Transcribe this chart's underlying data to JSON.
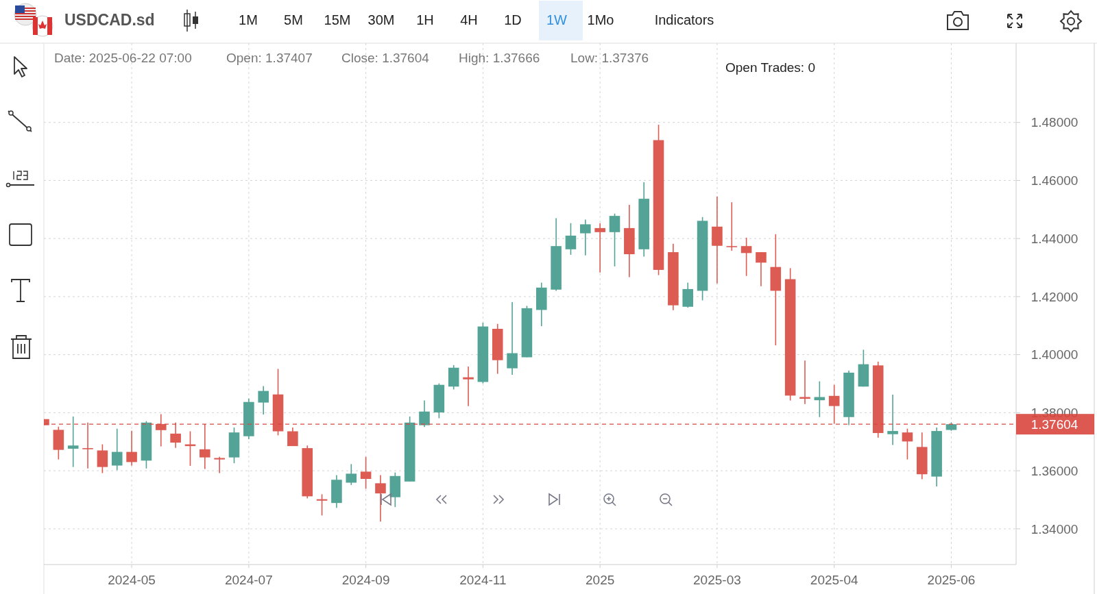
{
  "chart_data": {
    "type": "candlestick",
    "title": "USDCAD.sd",
    "x": [
      "2024-04-14",
      "2024-04-21",
      "2024-04-28",
      "2024-05-05",
      "2024-05-12",
      "2024-05-19",
      "2024-05-26",
      "2024-06-02",
      "2024-06-09",
      "2024-06-16",
      "2024-06-23",
      "2024-06-30",
      "2024-07-07",
      "2024-07-14",
      "2024-07-21",
      "2024-07-28",
      "2024-08-04",
      "2024-08-11",
      "2024-08-18",
      "2024-08-25",
      "2024-09-01",
      "2024-09-08",
      "2024-09-15",
      "2024-09-22",
      "2024-09-29",
      "2024-10-06",
      "2024-10-13",
      "2024-10-20",
      "2024-10-27",
      "2024-11-03",
      "2024-11-10",
      "2024-11-17",
      "2024-11-24",
      "2024-12-01",
      "2024-12-08",
      "2024-12-15",
      "2024-12-22",
      "2024-12-29",
      "2025-01-05",
      "2025-01-12",
      "2025-01-19",
      "2025-01-26",
      "2025-02-02",
      "2025-02-09",
      "2025-02-16",
      "2025-02-23",
      "2025-03-02",
      "2025-03-09",
      "2025-03-16",
      "2025-03-23",
      "2025-03-30",
      "2025-04-06",
      "2025-04-13",
      "2025-04-20",
      "2025-04-27",
      "2025-05-04",
      "2025-05-11",
      "2025-05-18",
      "2025-05-25",
      "2025-06-01",
      "2025-06-08",
      "2025-06-15",
      "2025-06-22"
    ],
    "ohlc": [
      [
        1.3778,
        1.3778,
        1.3757,
        1.3757
      ],
      [
        1.3741,
        1.3752,
        1.3639,
        1.3672
      ],
      [
        1.3676,
        1.3787,
        1.3613,
        1.3687
      ],
      [
        1.3678,
        1.3766,
        1.3608,
        1.3675
      ],
      [
        1.367,
        1.3691,
        1.3592,
        1.3613
      ],
      [
        1.3618,
        1.3745,
        1.3602,
        1.3665
      ],
      [
        1.3665,
        1.3738,
        1.3618,
        1.363
      ],
      [
        1.3635,
        1.3771,
        1.3608,
        1.3766
      ],
      [
        1.3761,
        1.3795,
        1.3684,
        1.374
      ],
      [
        1.3728,
        1.3766,
        1.3679,
        1.3697
      ],
      [
        1.3691,
        1.3736,
        1.3617,
        1.3685
      ],
      [
        1.3674,
        1.3761,
        1.3606,
        1.3646
      ],
      [
        1.3644,
        1.3648,
        1.3592,
        1.3639
      ],
      [
        1.3646,
        1.3749,
        1.3626,
        1.3732
      ],
      [
        1.3719,
        1.3849,
        1.3709,
        1.3837
      ],
      [
        1.3835,
        1.3892,
        1.3794,
        1.3875
      ],
      [
        1.3863,
        1.3951,
        1.3722,
        1.3736
      ],
      [
        1.3736,
        1.3749,
        1.3685,
        1.3685
      ],
      [
        1.3678,
        1.3687,
        1.3505,
        1.3512
      ],
      [
        1.3502,
        1.3519,
        1.3446,
        1.3497
      ],
      [
        1.3489,
        1.3585,
        1.3472,
        1.3569
      ],
      [
        1.3559,
        1.3623,
        1.3551,
        1.359
      ],
      [
        1.3597,
        1.3648,
        1.3538,
        1.3572
      ],
      [
        1.3557,
        1.3585,
        1.3425,
        1.3522
      ],
      [
        1.3509,
        1.3594,
        1.3475,
        1.3582
      ],
      [
        1.3563,
        1.3787,
        1.3563,
        1.3766
      ],
      [
        1.3757,
        1.3842,
        1.3751,
        1.3804
      ],
      [
        1.3801,
        1.3901,
        1.3781,
        1.3896
      ],
      [
        1.389,
        1.3964,
        1.388,
        1.3955
      ],
      [
        1.3922,
        1.3959,
        1.3823,
        1.3915
      ],
      [
        1.3906,
        1.411,
        1.3901,
        1.4097
      ],
      [
        1.4089,
        1.4106,
        1.3934,
        1.3981
      ],
      [
        1.3953,
        1.4181,
        1.3931,
        1.4005
      ],
      [
        1.3991,
        1.4168,
        1.3991,
        1.416
      ],
      [
        1.4154,
        1.4248,
        1.4098,
        1.4231
      ],
      [
        1.4224,
        1.447,
        1.422,
        1.4374
      ],
      [
        1.4363,
        1.4453,
        1.4344,
        1.441
      ],
      [
        1.4418,
        1.4465,
        1.4342,
        1.4449
      ],
      [
        1.4436,
        1.4453,
        1.4283,
        1.4422
      ],
      [
        1.4422,
        1.4486,
        1.4304,
        1.4478
      ],
      [
        1.4436,
        1.4516,
        1.4267,
        1.4346
      ],
      [
        1.4363,
        1.4594,
        1.4338,
        1.4537
      ],
      [
        1.4739,
        1.4792,
        1.4274,
        1.4292
      ],
      [
        1.4353,
        1.4382,
        1.4153,
        1.417
      ],
      [
        1.4165,
        1.4248,
        1.4162,
        1.4226
      ],
      [
        1.422,
        1.4474,
        1.4187,
        1.4461
      ],
      [
        1.4441,
        1.4545,
        1.4245,
        1.4375
      ],
      [
        1.4374,
        1.4525,
        1.4358,
        1.4371
      ],
      [
        1.4374,
        1.4403,
        1.4271,
        1.435
      ],
      [
        1.4353,
        1.4353,
        1.4236,
        1.4317
      ],
      [
        1.4302,
        1.4415,
        1.4032,
        1.422
      ],
      [
        1.426,
        1.4298,
        1.3842,
        1.3859
      ],
      [
        1.3854,
        1.398,
        1.383,
        1.3848
      ],
      [
        1.3843,
        1.3908,
        1.3785,
        1.3854
      ],
      [
        1.3858,
        1.3896,
        1.3762,
        1.3823
      ],
      [
        1.3785,
        1.3945,
        1.3757,
        1.3938
      ],
      [
        1.389,
        1.4017,
        1.389,
        1.3967
      ],
      [
        1.3963,
        1.3976,
        1.3714,
        1.373
      ],
      [
        1.3726,
        1.3862,
        1.3689,
        1.3737
      ],
      [
        1.3732,
        1.3745,
        1.3639,
        1.3701
      ],
      [
        1.3682,
        1.3732,
        1.3571,
        1.3588
      ],
      [
        1.358,
        1.3749,
        1.3546,
        1.3737
      ],
      [
        1.37407,
        1.37666,
        1.37376,
        1.37604
      ]
    ],
    "colors": [
      "#dc5b53",
      "#dc5b53",
      "#53a496",
      "#dc5b53",
      "#dc5b53",
      "#53a496",
      "#dc5b53",
      "#53a496",
      "#dc5b53",
      "#dc5b53",
      "#dc5b53",
      "#dc5b53",
      "#dc5b53",
      "#53a496",
      "#53a496",
      "#53a496",
      "#dc5b53",
      "#dc5b53",
      "#dc5b53",
      "#dc5b53",
      "#53a496",
      "#53a496",
      "#dc5b53",
      "#dc5b53",
      "#53a496",
      "#53a496",
      "#53a496",
      "#53a496",
      "#53a496",
      "#dc5b53",
      "#53a496",
      "#dc5b53",
      "#53a496",
      "#53a496",
      "#53a496",
      "#53a496",
      "#53a496",
      "#53a496",
      "#dc5b53",
      "#53a496",
      "#dc5b53",
      "#53a496",
      "#dc5b53",
      "#dc5b53",
      "#53a496",
      "#53a496",
      "#dc5b53",
      "#dc5b53",
      "#dc5b53",
      "#dc5b53",
      "#dc5b53",
      "#dc5b53",
      "#dc5b53",
      "#53a496",
      "#dc5b53",
      "#53a496",
      "#53a496",
      "#dc5b53",
      "#53a496",
      "#dc5b53",
      "#dc5b53",
      "#53a496",
      "#53a496"
    ],
    "xlim": [
      "2024-04-14",
      "2025-07-23"
    ],
    "xticks": [
      {
        "value": "2024-05-26",
        "label": "2024-05"
      },
      {
        "value": "2024-07-21",
        "label": "2024-07"
      },
      {
        "value": "2024-09-15",
        "label": "2024-09"
      },
      {
        "value": "2024-11-10",
        "label": "2024-11"
      },
      {
        "value": "2025-01-05",
        "label": "2025"
      },
      {
        "value": "2025-03-02",
        "label": "2025-03"
      },
      {
        "value": "2025-04-27",
        "label": "2025-04"
      },
      {
        "value": "2025-06-22",
        "label": "2025-06"
      }
    ],
    "ylim": [
      1.3277,
      1.5073
    ],
    "yticks": [
      {
        "value": 1.34,
        "label": "1.34000"
      },
      {
        "value": 1.36,
        "label": "1.36000"
      },
      {
        "value": 1.38,
        "label": "1.38000"
      },
      {
        "value": 1.4,
        "label": "1.40000"
      },
      {
        "value": 1.42,
        "label": "1.42000"
      },
      {
        "value": 1.44,
        "label": "1.44000"
      },
      {
        "value": 1.46,
        "label": "1.46000"
      },
      {
        "value": 1.48,
        "label": "1.48000"
      }
    ],
    "grid": true,
    "ref_lines": [
      {
        "axis": "y",
        "value": 1.37604,
        "label": "1.37604",
        "color": "#d9463e",
        "line_style": "dashed"
      }
    ],
    "annotations": [
      "1M",
      "5M",
      "15M",
      "30M",
      "1H",
      "4H",
      "1D",
      "1W",
      "1Mo",
      "Indicators",
      "Date: 2025-06-22 07:00",
      "Open: 1.37407",
      "Close: 1.37604",
      "High: 1.37666",
      "Low: 1.37376",
      "Open Trades: 0"
    ]
  }
}
